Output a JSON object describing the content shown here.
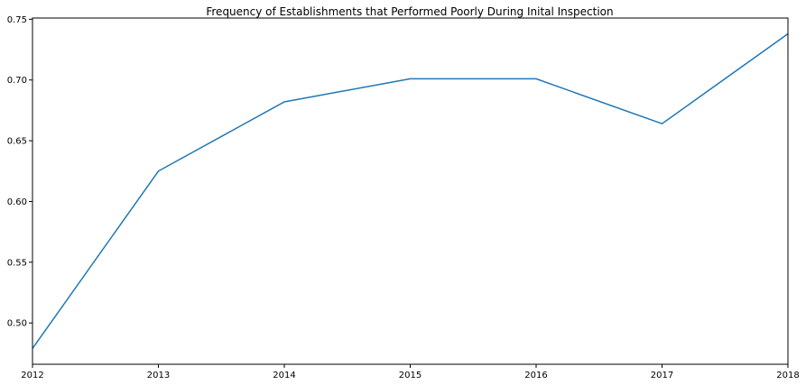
{
  "chart_data": {
    "type": "line",
    "title": "Frequency of Establishments that Performed Poorly During Inital Inspection",
    "xlabel": "",
    "ylabel": "",
    "x": [
      2012,
      2013,
      2014,
      2015,
      2016,
      2017,
      2018
    ],
    "series": [
      {
        "values": [
          0.479,
          0.625,
          0.682,
          0.701,
          0.701,
          0.664,
          0.738
        ]
      }
    ],
    "xlim": [
      2012,
      2018
    ],
    "ylim": [
      0.466,
      0.751
    ],
    "xticks": [
      "2012",
      "2013",
      "2014",
      "2015",
      "2016",
      "2017",
      "2018"
    ],
    "yticks": [
      "0.50",
      "0.55",
      "0.60",
      "0.65",
      "0.70",
      "0.75"
    ],
    "grid": false,
    "legend": "none",
    "line_color": "#1f77b4"
  }
}
